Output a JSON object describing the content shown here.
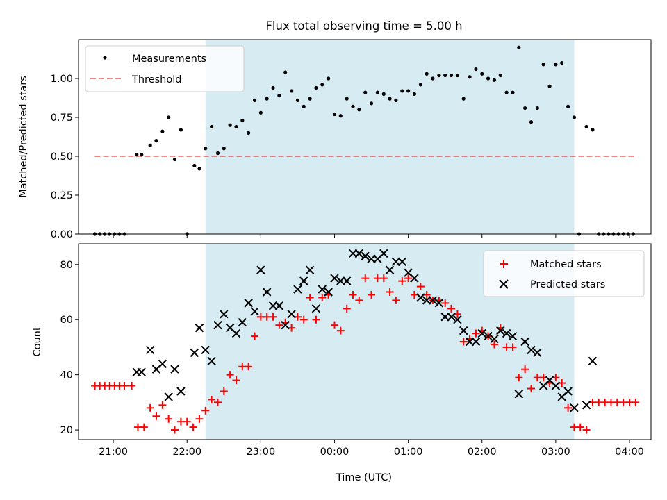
{
  "title": "Flux total observing time = 5.00 h",
  "colors": {
    "shade": "#add8e6",
    "threshold": "#ff0000",
    "matched": "#ff0000",
    "predicted": "#000000",
    "measurement": "#000000"
  },
  "chart_data": [
    {
      "type": "scatter",
      "panel": "top",
      "ylabel": "Matched/Predicted stars",
      "xlabel": "",
      "xlim": [
        -0.472,
        7.292
      ],
      "ylim": [
        0,
        1.25
      ],
      "yticks": [
        0.0,
        0.25,
        0.5,
        0.75,
        1.0
      ],
      "ytick_labels": [
        "0.00",
        "0.25",
        "0.50",
        "0.75",
        "1.00"
      ],
      "x_units": "hours after 21:00 UTC",
      "shaded_region": [
        1.25,
        6.25
      ],
      "legend_position": "upper-left",
      "legend": [
        "Measurements",
        "Threshold"
      ],
      "threshold": {
        "name": "Threshold",
        "value": 0.5,
        "x_range": [
          -0.25,
          7.083
        ]
      },
      "series": [
        {
          "name": "Measurements",
          "marker": "dot",
          "points": [
            [
              -0.25,
              0
            ],
            [
              -0.183,
              0
            ],
            [
              -0.117,
              0
            ],
            [
              -0.05,
              0
            ],
            [
              0.017,
              0
            ],
            [
              0.083,
              0
            ],
            [
              0.15,
              0
            ],
            [
              0.317,
              0.51
            ],
            [
              0.383,
              0.51
            ],
            [
              0.5,
              0.57
            ],
            [
              0.583,
              0.6
            ],
            [
              0.667,
              0.66
            ],
            [
              0.75,
              0.75
            ],
            [
              0.833,
              0.48
            ],
            [
              0.917,
              0.67
            ],
            [
              1.0,
              0
            ],
            [
              1.1,
              0.44
            ],
            [
              1.167,
              0.42
            ],
            [
              1.25,
              0.55
            ],
            [
              1.333,
              0.69
            ],
            [
              1.417,
              0.52
            ],
            [
              1.5,
              0.55
            ],
            [
              1.583,
              0.7
            ],
            [
              1.667,
              0.69
            ],
            [
              1.75,
              0.73
            ],
            [
              1.833,
              0.65
            ],
            [
              1.917,
              0.86
            ],
            [
              2.0,
              0.78
            ],
            [
              2.083,
              0.87
            ],
            [
              2.167,
              0.94
            ],
            [
              2.25,
              0.89
            ],
            [
              2.333,
              1.04
            ],
            [
              2.417,
              0.92
            ],
            [
              2.5,
              0.86
            ],
            [
              2.583,
              0.82
            ],
            [
              2.667,
              0.87
            ],
            [
              2.75,
              0.94
            ],
            [
              2.833,
              0.96
            ],
            [
              2.917,
              1.0
            ],
            [
              3.0,
              0.77
            ],
            [
              3.083,
              0.76
            ],
            [
              3.167,
              0.87
            ],
            [
              3.25,
              0.82
            ],
            [
              3.333,
              0.8
            ],
            [
              3.417,
              0.91
            ],
            [
              3.5,
              0.84
            ],
            [
              3.583,
              0.91
            ],
            [
              3.667,
              0.9
            ],
            [
              3.75,
              0.87
            ],
            [
              3.833,
              0.86
            ],
            [
              3.917,
              0.92
            ],
            [
              4.0,
              0.92
            ],
            [
              4.083,
              0.9
            ],
            [
              4.167,
              0.96
            ],
            [
              4.25,
              1.03
            ],
            [
              4.333,
              1.0
            ],
            [
              4.417,
              1.02
            ],
            [
              4.5,
              1.02
            ],
            [
              4.583,
              1.02
            ],
            [
              4.667,
              1.02
            ],
            [
              4.75,
              0.87
            ],
            [
              4.833,
              1.01
            ],
            [
              4.917,
              1.06
            ],
            [
              5.0,
              1.03
            ],
            [
              5.083,
              1.0
            ],
            [
              5.167,
              0.99
            ],
            [
              5.25,
              1.02
            ],
            [
              5.333,
              0.91
            ],
            [
              5.417,
              0.91
            ],
            [
              5.5,
              1.2
            ],
            [
              5.583,
              0.81
            ],
            [
              5.667,
              0.72
            ],
            [
              5.75,
              0.81
            ],
            [
              5.833,
              1.09
            ],
            [
              5.917,
              0.95
            ],
            [
              6.0,
              1.09
            ],
            [
              6.083,
              1.1
            ],
            [
              6.167,
              0.82
            ],
            [
              6.25,
              0.75
            ],
            [
              6.317,
              0
            ],
            [
              6.417,
              0.69
            ],
            [
              6.5,
              0.67
            ],
            [
              6.583,
              0
            ],
            [
              6.65,
              0
            ],
            [
              6.717,
              0
            ],
            [
              6.783,
              0
            ],
            [
              6.85,
              0
            ],
            [
              6.917,
              0
            ],
            [
              6.983,
              0
            ],
            [
              7.05,
              0
            ]
          ]
        }
      ]
    },
    {
      "type": "scatter",
      "panel": "bottom",
      "ylabel": "Count",
      "xlabel": "Time (UTC)",
      "xlim": [
        -0.472,
        7.292
      ],
      "ylim": [
        16.5,
        87.5
      ],
      "yticks": [
        20,
        40,
        60,
        80
      ],
      "ytick_labels": [
        "20",
        "40",
        "60",
        "80"
      ],
      "xticks": [
        0,
        1,
        2,
        3,
        4,
        5,
        6,
        7
      ],
      "xtick_labels": [
        "21:00",
        "22:00",
        "23:00",
        "00:00",
        "01:00",
        "02:00",
        "03:00",
        "04:00"
      ],
      "x_units": "hours after 21:00 UTC",
      "shaded_region": [
        1.25,
        6.25
      ],
      "legend_position": "upper-right",
      "legend": [
        "Matched stars",
        "Predicted stars"
      ],
      "series": [
        {
          "name": "Matched stars",
          "marker": "plus",
          "points": [
            [
              -0.25,
              36
            ],
            [
              -0.183,
              36
            ],
            [
              -0.117,
              36
            ],
            [
              -0.05,
              36
            ],
            [
              0.017,
              36
            ],
            [
              0.083,
              36
            ],
            [
              0.15,
              36
            ],
            [
              0.25,
              36
            ],
            [
              0.333,
              21
            ],
            [
              0.417,
              21
            ],
            [
              0.5,
              28
            ],
            [
              0.583,
              25
            ],
            [
              0.667,
              29
            ],
            [
              0.75,
              24
            ],
            [
              0.833,
              20
            ],
            [
              0.917,
              23
            ],
            [
              1.0,
              23
            ],
            [
              1.083,
              21
            ],
            [
              1.167,
              24
            ],
            [
              1.25,
              27
            ],
            [
              1.333,
              31
            ],
            [
              1.417,
              30
            ],
            [
              1.5,
              34
            ],
            [
              1.583,
              40
            ],
            [
              1.667,
              38
            ],
            [
              1.75,
              43
            ],
            [
              1.833,
              43
            ],
            [
              1.917,
              54
            ],
            [
              2.0,
              61
            ],
            [
              2.083,
              61
            ],
            [
              2.167,
              61
            ],
            [
              2.25,
              58
            ],
            [
              2.333,
              59
            ],
            [
              2.417,
              57
            ],
            [
              2.5,
              61
            ],
            [
              2.583,
              60
            ],
            [
              2.667,
              68
            ],
            [
              2.75,
              60
            ],
            [
              2.833,
              68
            ],
            [
              2.917,
              69
            ],
            [
              3.0,
              58
            ],
            [
              3.083,
              56
            ],
            [
              3.167,
              64
            ],
            [
              3.25,
              69
            ],
            [
              3.333,
              67
            ],
            [
              3.417,
              75
            ],
            [
              3.5,
              69
            ],
            [
              3.583,
              75
            ],
            [
              3.667,
              75
            ],
            [
              3.75,
              70
            ],
            [
              3.833,
              67
            ],
            [
              3.917,
              74
            ],
            [
              4.0,
              75
            ],
            [
              4.083,
              69
            ],
            [
              4.167,
              72
            ],
            [
              4.25,
              69
            ],
            [
              4.333,
              67
            ],
            [
              4.417,
              67
            ],
            [
              4.5,
              66
            ],
            [
              4.583,
              64
            ],
            [
              4.667,
              62
            ],
            [
              4.75,
              52
            ],
            [
              4.833,
              53
            ],
            [
              4.917,
              55
            ],
            [
              5.0,
              56
            ],
            [
              5.083,
              54
            ],
            [
              5.167,
              51
            ],
            [
              5.25,
              57
            ],
            [
              5.333,
              50
            ],
            [
              5.417,
              50
            ],
            [
              5.5,
              39
            ],
            [
              5.583,
              42
            ],
            [
              5.667,
              35
            ],
            [
              5.75,
              39
            ],
            [
              5.833,
              39
            ],
            [
              5.917,
              37
            ],
            [
              6.0,
              39
            ],
            [
              6.083,
              37
            ],
            [
              6.167,
              28
            ],
            [
              6.25,
              21
            ],
            [
              6.333,
              21
            ],
            [
              6.417,
              20
            ],
            [
              6.5,
              30
            ],
            [
              6.583,
              30
            ],
            [
              6.667,
              30
            ],
            [
              6.75,
              30
            ],
            [
              6.833,
              30
            ],
            [
              6.917,
              30
            ],
            [
              7.0,
              30
            ],
            [
              7.083,
              30
            ]
          ]
        },
        {
          "name": "Predicted stars",
          "marker": "x",
          "points": [
            [
              0.317,
              41
            ],
            [
              0.383,
              41
            ],
            [
              0.5,
              49
            ],
            [
              0.583,
              42
            ],
            [
              0.667,
              44
            ],
            [
              0.75,
              32
            ],
            [
              0.833,
              42
            ],
            [
              0.917,
              34
            ],
            [
              1.1,
              48
            ],
            [
              1.167,
              57
            ],
            [
              1.25,
              49
            ],
            [
              1.333,
              45
            ],
            [
              1.417,
              58
            ],
            [
              1.5,
              62
            ],
            [
              1.583,
              57
            ],
            [
              1.667,
              55
            ],
            [
              1.75,
              59
            ],
            [
              1.833,
              66
            ],
            [
              1.917,
              63
            ],
            [
              2.0,
              78
            ],
            [
              2.083,
              70
            ],
            [
              2.167,
              65
            ],
            [
              2.25,
              65
            ],
            [
              2.333,
              58
            ],
            [
              2.417,
              62
            ],
            [
              2.5,
              71
            ],
            [
              2.583,
              74
            ],
            [
              2.667,
              78
            ],
            [
              2.75,
              64
            ],
            [
              2.833,
              71
            ],
            [
              2.917,
              70
            ],
            [
              3.0,
              75
            ],
            [
              3.083,
              74
            ],
            [
              3.167,
              74
            ],
            [
              3.25,
              84
            ],
            [
              3.333,
              84
            ],
            [
              3.417,
              83
            ],
            [
              3.5,
              82
            ],
            [
              3.583,
              82
            ],
            [
              3.667,
              84
            ],
            [
              3.75,
              78
            ],
            [
              3.833,
              81
            ],
            [
              3.917,
              81
            ],
            [
              4.0,
              77
            ],
            [
              4.083,
              75
            ],
            [
              4.167,
              68
            ],
            [
              4.25,
              67
            ],
            [
              4.333,
              67
            ],
            [
              4.417,
              66
            ],
            [
              4.5,
              61
            ],
            [
              4.583,
              61
            ],
            [
              4.667,
              60
            ],
            [
              4.75,
              56
            ],
            [
              4.833,
              52
            ],
            [
              4.917,
              52
            ],
            [
              5.0,
              55
            ],
            [
              5.083,
              54
            ],
            [
              5.167,
              53
            ],
            [
              5.25,
              56
            ],
            [
              5.333,
              55
            ],
            [
              5.417,
              54
            ],
            [
              5.5,
              33
            ],
            [
              5.583,
              52
            ],
            [
              5.667,
              49
            ],
            [
              5.75,
              48
            ],
            [
              5.833,
              36
            ],
            [
              5.917,
              38
            ],
            [
              6.0,
              36
            ],
            [
              6.083,
              32
            ],
            [
              6.167,
              34
            ],
            [
              6.25,
              28
            ],
            [
              6.417,
              29
            ],
            [
              6.5,
              45
            ]
          ]
        }
      ]
    }
  ]
}
